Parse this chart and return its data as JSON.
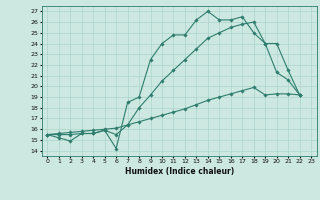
{
  "title": "",
  "xlabel": "Humidex (Indice chaleur)",
  "bg_color": "#cce8e0",
  "line_color": "#2e7d6e",
  "grid_color": "#aad4cb",
  "xticks": [
    0,
    1,
    2,
    3,
    4,
    5,
    6,
    7,
    8,
    9,
    10,
    11,
    12,
    13,
    14,
    15,
    16,
    17,
    18,
    19,
    20,
    21,
    22,
    23
  ],
  "yticks": [
    14,
    15,
    16,
    17,
    18,
    19,
    20,
    21,
    22,
    23,
    24,
    25,
    26,
    27
  ],
  "line1_x": [
    0,
    1,
    2,
    3,
    4,
    5,
    6,
    7,
    8,
    9,
    10,
    11,
    12,
    13,
    14,
    15,
    16,
    17,
    18,
    19,
    20,
    21,
    22
  ],
  "line1_y": [
    15.5,
    15.2,
    14.9,
    15.6,
    15.6,
    15.9,
    14.2,
    18.5,
    19.0,
    22.5,
    24.0,
    24.8,
    24.8,
    26.2,
    27.0,
    26.2,
    26.2,
    26.5,
    25.0,
    24.0,
    21.3,
    20.6,
    19.2
  ],
  "line2_x": [
    0,
    1,
    2,
    3,
    4,
    5,
    6,
    7,
    8,
    9,
    10,
    11,
    12,
    13,
    14,
    15,
    16,
    17,
    18,
    19,
    20,
    21,
    22
  ],
  "line2_y": [
    15.5,
    15.5,
    15.5,
    15.6,
    15.6,
    15.9,
    15.5,
    16.4,
    18.0,
    19.2,
    20.5,
    21.5,
    22.5,
    23.5,
    24.5,
    25.0,
    25.5,
    25.8,
    26.0,
    24.0,
    24.0,
    21.5,
    19.2
  ],
  "line3_x": [
    0,
    1,
    2,
    3,
    4,
    5,
    6,
    7,
    8,
    9,
    10,
    11,
    12,
    13,
    14,
    15,
    16,
    17,
    18,
    19,
    20,
    21,
    22
  ],
  "line3_y": [
    15.5,
    15.6,
    15.7,
    15.8,
    15.9,
    16.0,
    16.1,
    16.4,
    16.7,
    17.0,
    17.3,
    17.6,
    17.9,
    18.3,
    18.7,
    19.0,
    19.3,
    19.6,
    19.9,
    19.2,
    19.3,
    19.3,
    19.2
  ]
}
